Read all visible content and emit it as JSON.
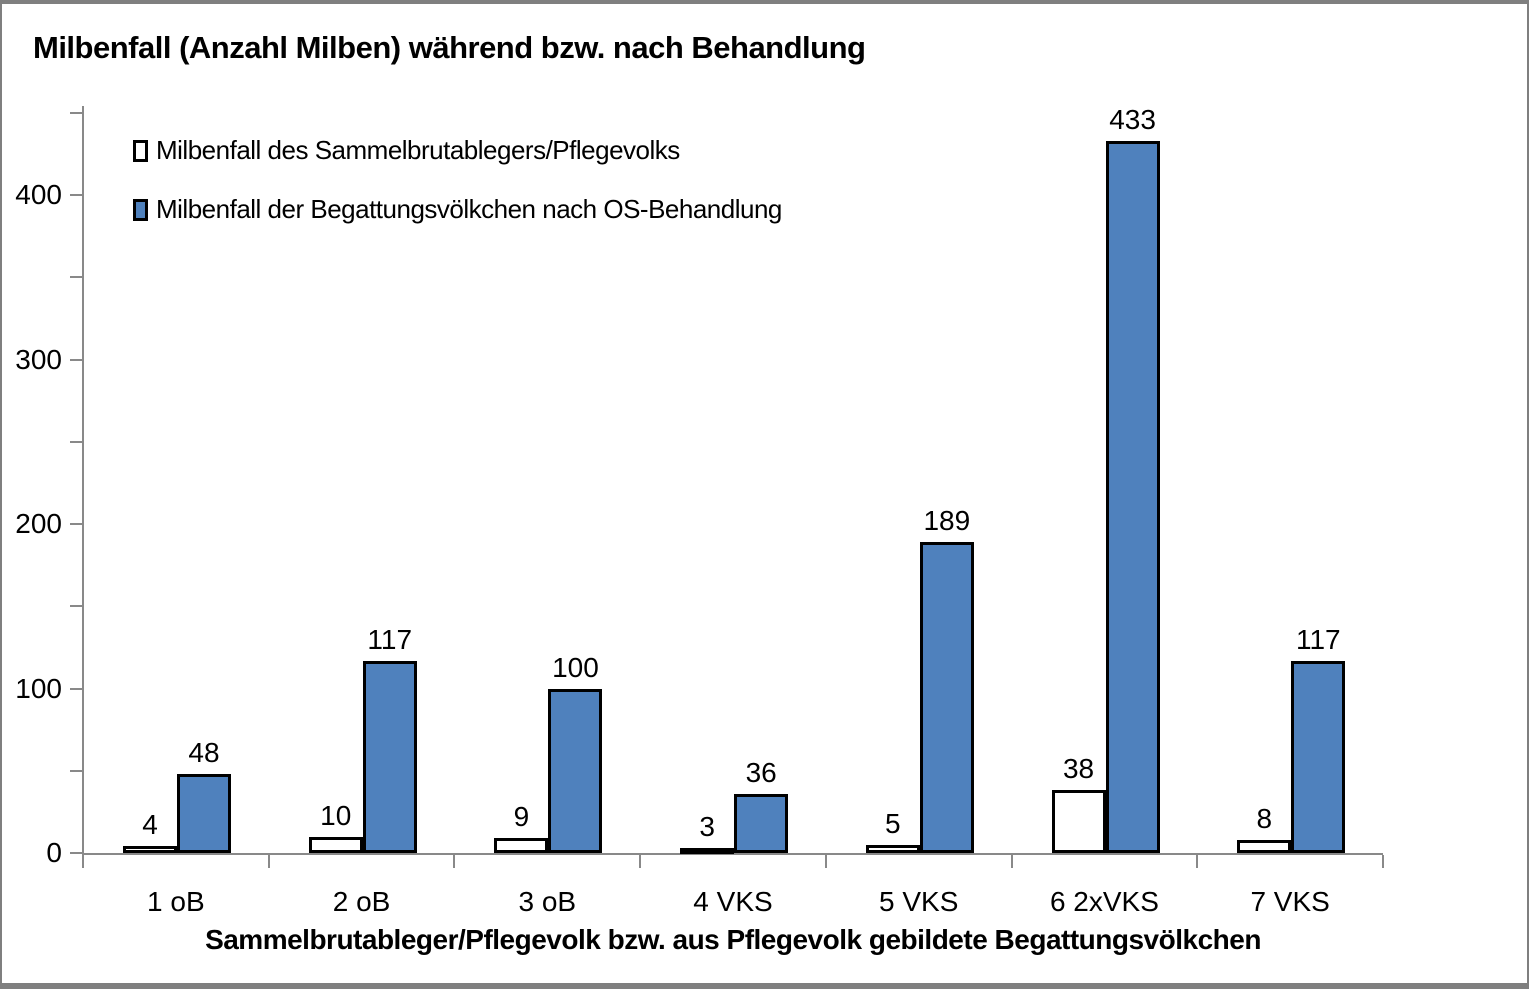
{
  "chart_data": {
    "type": "bar",
    "title": "Milbenfall (Anzahl Milben) während bzw. nach Behandlung",
    "categories": [
      "1 oB",
      "2 oB",
      "3 oB",
      "4 VKS",
      "5 VKS",
      "6 2xVKS",
      "7 VKS"
    ],
    "series": [
      {
        "name": "Milbenfall des Sammelbrutablegers/Pflegevolks",
        "values": [
          4,
          10,
          9,
          3,
          5,
          38,
          8
        ],
        "fill": "#ffffff"
      },
      {
        "name": "Milbenfall der Begattungsvölkchen nach OS-Behandlung",
        "values": [
          48,
          117,
          100,
          36,
          189,
          433,
          117
        ],
        "fill": "#4f81bd"
      }
    ],
    "xlabel": "Sammelbrutableger/Pflegevolk bzw. aus Pflegevolk gebildete Begattungsvölkchen",
    "ylabel": "",
    "ylim": [
      0,
      450
    ],
    "yticks_major": [
      0,
      100,
      200,
      300,
      400
    ],
    "ytick_minor_step": 50,
    "grid": false,
    "legend_position": "top-left-inside",
    "data_labels": "outside-end",
    "colors": {
      "bar_border": "#000000",
      "axis": "#898989",
      "text": "#000000",
      "frame": "#7f7f7f",
      "series2_fill": "#4f81bd",
      "series1_fill": "#ffffff"
    }
  }
}
